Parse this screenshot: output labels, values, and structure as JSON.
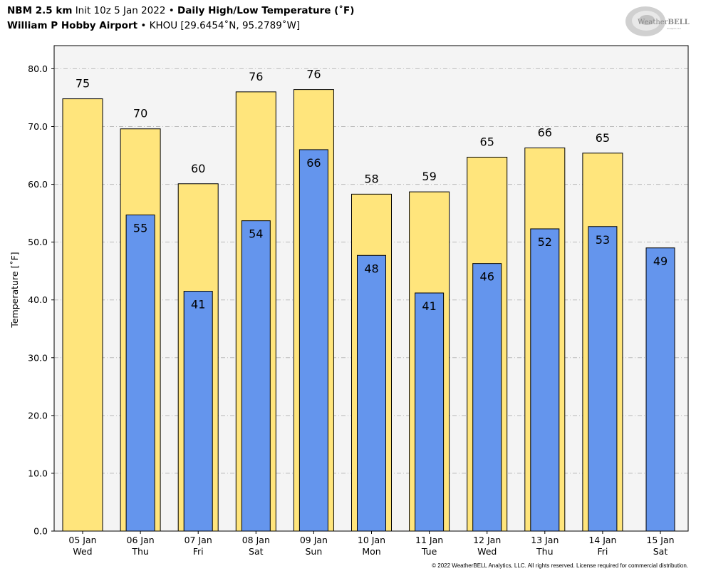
{
  "header": {
    "model": "NBM 2.5 km",
    "init": "Init 10z 5 Jan 2022",
    "bullet": "•",
    "product": "Daily High/Low Temperature (˚F)",
    "station_name": "William P Hobby Airport",
    "station_info": "KHOU [29.6454˚N, 95.2789˚W]"
  },
  "logo": {
    "text_prefix": "Weather",
    "text_suffix": "BELL",
    "subtext": "Analytics LLC"
  },
  "copyright": "© 2022 WeatherBELL Analytics, LLC. All rights reserved. License required for commercial distribution.",
  "colors": {
    "high": "#FFE57C",
    "low": "#6495ED",
    "plot_bg": "#F4F4F4",
    "grid": "#BBBBBB"
  },
  "chart_data": {
    "type": "bar",
    "ylabel": "Temperature [˚F]",
    "ylim": [
      0,
      84
    ],
    "yticks": [
      "0.0",
      "10.0",
      "20.0",
      "30.0",
      "40.0",
      "50.0",
      "60.0",
      "70.0",
      "80.0"
    ],
    "grid": true,
    "categories": [
      {
        "date": "05 Jan",
        "day": "Wed"
      },
      {
        "date": "06 Jan",
        "day": "Thu"
      },
      {
        "date": "07 Jan",
        "day": "Fri"
      },
      {
        "date": "08 Jan",
        "day": "Sat"
      },
      {
        "date": "09 Jan",
        "day": "Sun"
      },
      {
        "date": "10 Jan",
        "day": "Mon"
      },
      {
        "date": "11 Jan",
        "day": "Tue"
      },
      {
        "date": "12 Jan",
        "day": "Wed"
      },
      {
        "date": "13 Jan",
        "day": "Thu"
      },
      {
        "date": "14 Jan",
        "day": "Fri"
      },
      {
        "date": "15 Jan",
        "day": "Sat"
      }
    ],
    "series": [
      {
        "values": [
          74.8,
          69.6,
          60.1,
          76.0,
          76.4,
          58.3,
          58.7,
          64.7,
          66.3,
          65.4,
          null
        ],
        "labels": [
          "75",
          "70",
          "60",
          "76",
          "76",
          "58",
          "59",
          "65",
          "66",
          "65",
          ""
        ]
      },
      {
        "values": [
          null,
          54.7,
          41.5,
          53.7,
          66.0,
          47.7,
          41.2,
          46.3,
          52.3,
          52.7,
          49.0
        ],
        "labels": [
          "",
          "55",
          "41",
          "54",
          "66",
          "48",
          "41",
          "46",
          "52",
          "53",
          "49"
        ]
      }
    ]
  }
}
